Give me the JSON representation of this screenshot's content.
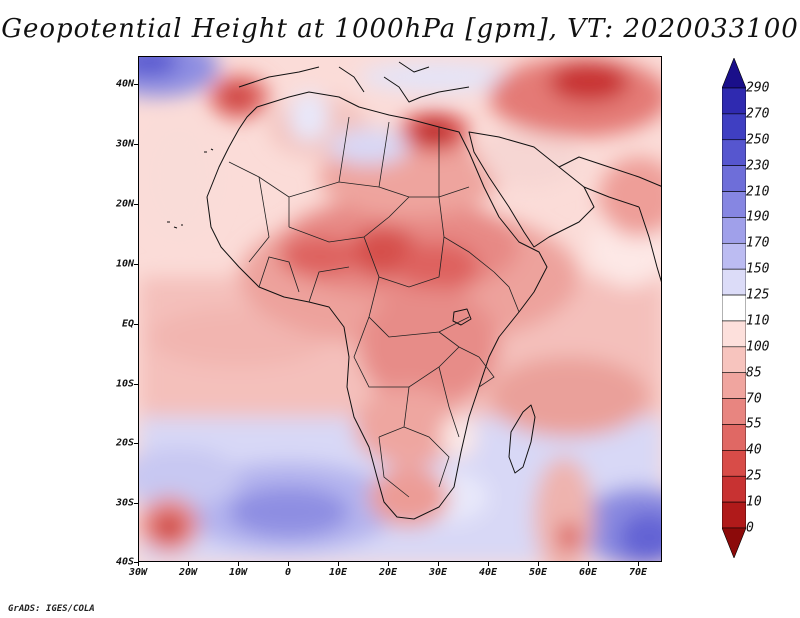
{
  "title": "Geopotential Height at 1000hPa [gpm], VT: 2020033100",
  "credit": "GrADS: IGES/COLA",
  "map": {
    "lat_labels": [
      "40N",
      "30N",
      "20N",
      "10N",
      "EQ",
      "10S",
      "20S",
      "30S",
      "40S"
    ],
    "lon_labels": [
      "30W",
      "20W",
      "10W",
      "0",
      "10E",
      "20E",
      "30E",
      "40E",
      "50E",
      "60E",
      "70E"
    ],
    "lat_range": [
      -40,
      45
    ],
    "lon_range": [
      -30,
      75
    ]
  },
  "colorbar": {
    "levels": [
      "290",
      "270",
      "250",
      "230",
      "210",
      "190",
      "170",
      "150",
      "125",
      "110",
      "100",
      "85",
      "70",
      "55",
      "40",
      "25",
      "10",
      "0"
    ],
    "colors": [
      "#1a0f8a",
      "#2f2ab0",
      "#3f3fc2",
      "#5656cf",
      "#6e6ed9",
      "#8686e2",
      "#a0a0ea",
      "#bcbcf2",
      "#dcdcf8",
      "#ffffff",
      "#fde0dc",
      "#f7c4be",
      "#f0a59f",
      "#e88580",
      "#e06864",
      "#d84c48",
      "#c83232",
      "#b01a1a",
      "#8c0a0a"
    ]
  }
}
